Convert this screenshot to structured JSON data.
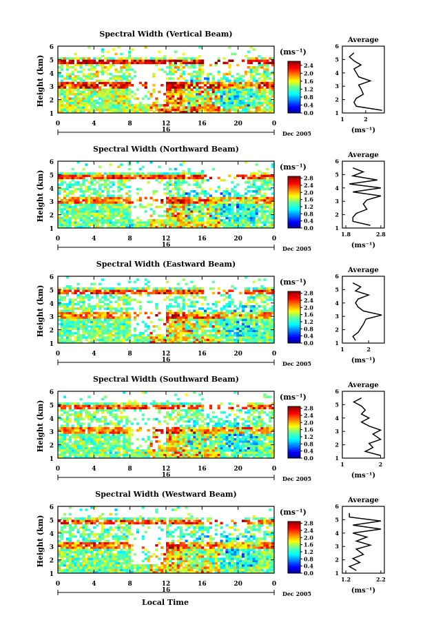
{
  "figure": {
    "xlabel": "Local Time",
    "date_label": "Dec 2005",
    "day_label": "16",
    "unit_label": "(ms⁻¹)",
    "average_title": "Average"
  },
  "chart_data": [
    {
      "type": "heatmap",
      "title": "Spectral Width (Vertical Beam)",
      "ylabel": "Height (km)",
      "xlabel": "",
      "x_ticks": [
        "0",
        "4",
        "8",
        "12",
        "16",
        "20",
        "0"
      ],
      "xlim": [
        0,
        24
      ],
      "y_ticks": [
        "1",
        "2",
        "3",
        "4",
        "5",
        "6"
      ],
      "ylim": [
        1,
        6
      ],
      "colorbar": {
        "ticks": [
          "0.0",
          "0.4",
          "0.8",
          "1.2",
          "1.6",
          "2.0",
          "2.4"
        ],
        "range": [
          0,
          2.6
        ],
        "unit": "(ms⁻¹)"
      },
      "average": {
        "title": "Average",
        "xlabel": "(ms⁻¹)",
        "x_ticks": [
          "1",
          "2"
        ],
        "xlim": [
          1,
          2.8
        ],
        "ylim": [
          1,
          6
        ],
        "y_ticks": [
          "1",
          "2",
          "3",
          "4",
          "5",
          "6"
        ],
        "heights": [
          1.2,
          1.5,
          1.8,
          2.1,
          2.4,
          2.8,
          3.1,
          3.4,
          3.7,
          4.0,
          4.3,
          4.6,
          4.9,
          5.2,
          5.5
        ],
        "values": [
          2.7,
          1.6,
          1.5,
          1.6,
          1.9,
          1.8,
          1.7,
          2.2,
          1.7,
          1.6,
          1.5,
          1.8,
          1.5,
          1.3,
          1.5
        ]
      }
    },
    {
      "type": "heatmap",
      "title": "Spectral Width (Northward Beam)",
      "ylabel": "Height (km)",
      "xlabel": "",
      "x_ticks": [
        "0",
        "4",
        "8",
        "12",
        "16",
        "20",
        "0"
      ],
      "xlim": [
        0,
        24
      ],
      "y_ticks": [
        "1",
        "2",
        "3",
        "4",
        "5",
        "6"
      ],
      "ylim": [
        1,
        6
      ],
      "colorbar": {
        "ticks": [
          "0.0",
          "0.4",
          "0.8",
          "1.2",
          "1.6",
          "2.0",
          "2.4",
          "2.8"
        ],
        "range": [
          0,
          2.9
        ],
        "unit": "(ms⁻¹)"
      },
      "average": {
        "title": "Average",
        "xlabel": "(ms⁻¹)",
        "x_ticks": [
          "1.8",
          "2.8"
        ],
        "xlim": [
          1.7,
          2.9
        ],
        "ylim": [
          1,
          6
        ],
        "y_ticks": [
          "1",
          "2",
          "3",
          "4",
          "5",
          "6"
        ],
        "heights": [
          1.2,
          1.5,
          1.8,
          2.1,
          2.4,
          2.8,
          3.1,
          3.4,
          3.7,
          4.0,
          4.3,
          4.6,
          4.9,
          5.2,
          5.5
        ],
        "values": [
          2.5,
          2.0,
          2.0,
          2.1,
          2.4,
          2.3,
          2.4,
          2.8,
          2.0,
          2.8,
          1.9,
          2.7,
          2.0,
          2.3,
          2.0
        ]
      }
    },
    {
      "type": "heatmap",
      "title": "Spectral Width (Eastward Beam)",
      "ylabel": "Height (km)",
      "xlabel": "",
      "x_ticks": [
        "0",
        "4",
        "8",
        "12",
        "16",
        "20",
        "0"
      ],
      "xlim": [
        0,
        24
      ],
      "y_ticks": [
        "1",
        "2",
        "3",
        "4",
        "5",
        "6"
      ],
      "ylim": [
        1,
        6
      ],
      "colorbar": {
        "ticks": [
          "0.0",
          "0.4",
          "0.8",
          "1.2",
          "1.6",
          "2.0",
          "2.4",
          "2.8"
        ],
        "range": [
          0,
          2.9
        ],
        "unit": "(ms⁻¹)"
      },
      "average": {
        "title": "Average",
        "xlabel": "(ms⁻¹)",
        "x_ticks": [
          "1",
          "2"
        ],
        "xlim": [
          1,
          2.6
        ],
        "ylim": [
          1,
          6
        ],
        "y_ticks": [
          "1",
          "2",
          "3",
          "4",
          "5",
          "6"
        ],
        "heights": [
          1.2,
          1.5,
          1.8,
          2.1,
          2.4,
          2.8,
          3.1,
          3.4,
          3.7,
          4.0,
          4.3,
          4.6,
          4.9,
          5.2,
          5.5
        ],
        "values": [
          1.5,
          1.4,
          1.6,
          1.7,
          1.8,
          1.9,
          2.5,
          1.8,
          1.6,
          1.5,
          1.6,
          2.0,
          1.5,
          1.7,
          1.4
        ]
      }
    },
    {
      "type": "heatmap",
      "title": "Spectral Width (Southward Beam)",
      "ylabel": "Height (km)",
      "xlabel": "",
      "x_ticks": [
        "0",
        "4",
        "8",
        "12",
        "16",
        "20",
        "0"
      ],
      "xlim": [
        0,
        24
      ],
      "y_ticks": [
        "1",
        "2",
        "3",
        "4",
        "5",
        "6"
      ],
      "ylim": [
        1,
        6
      ],
      "colorbar": {
        "ticks": [
          "0.0",
          "0.4",
          "0.8",
          "1.2",
          "1.6",
          "2.0",
          "2.4",
          "2.8"
        ],
        "range": [
          0,
          2.9
        ],
        "unit": "(ms⁻¹)"
      },
      "average": {
        "title": "Average",
        "xlabel": "(ms⁻¹)",
        "x_ticks": [
          "1",
          "2"
        ],
        "xlim": [
          1,
          2.1
        ],
        "ylim": [
          1,
          6
        ],
        "y_ticks": [
          "1",
          "2",
          "3",
          "4",
          "5",
          "6"
        ],
        "heights": [
          1.2,
          1.5,
          1.8,
          2.1,
          2.4,
          2.8,
          3.1,
          3.4,
          3.7,
          4.0,
          4.3,
          4.6,
          4.9,
          5.2,
          5.5
        ],
        "values": [
          2.0,
          1.6,
          1.8,
          1.7,
          2.0,
          1.8,
          2.0,
          1.7,
          1.5,
          1.7,
          1.5,
          1.6,
          1.5,
          1.3,
          1.5
        ]
      }
    },
    {
      "type": "heatmap",
      "title": "Spectral Width (Westward Beam)",
      "ylabel": "Height (km)",
      "xlabel": "Local Time",
      "x_ticks": [
        "0",
        "4",
        "8",
        "12",
        "16",
        "20",
        "0"
      ],
      "xlim": [
        0,
        24
      ],
      "y_ticks": [
        "1",
        "2",
        "3",
        "4",
        "5",
        "6"
      ],
      "ylim": [
        1,
        6
      ],
      "colorbar": {
        "ticks": [
          "0.0",
          "0.4",
          "0.8",
          "1.2",
          "1.6",
          "2.0",
          "2.4",
          "2.8"
        ],
        "range": [
          0,
          2.9
        ],
        "unit": "(ms⁻¹)"
      },
      "average": {
        "title": "Average",
        "xlabel": "(ms⁻¹)",
        "x_ticks": [
          "1.2",
          "2.2"
        ],
        "xlim": [
          1.1,
          2.3
        ],
        "ylim": [
          1,
          6
        ],
        "y_ticks": [
          "1",
          "2",
          "3",
          "4",
          "5",
          "6"
        ],
        "heights": [
          1.2,
          1.5,
          1.8,
          2.1,
          2.4,
          2.8,
          3.1,
          3.4,
          3.7,
          4.0,
          4.3,
          4.6,
          4.9,
          5.2,
          5.5
        ],
        "values": [
          1.5,
          1.3,
          1.6,
          1.4,
          1.7,
          1.5,
          1.9,
          1.5,
          1.8,
          1.4,
          2.2,
          1.4,
          2.2,
          1.3,
          1.3
        ]
      }
    }
  ]
}
